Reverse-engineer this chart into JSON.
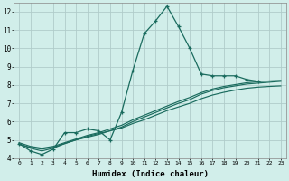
{
  "xlabel": "Humidex (Indice chaleur)",
  "bg_color": "#d1eeea",
  "grid_color": "#b0ccca",
  "line_color": "#1a6b5e",
  "x_main": [
    0,
    1,
    2,
    3,
    4,
    5,
    6,
    7,
    8,
    9,
    10,
    11,
    12,
    13,
    14,
    15,
    16,
    17,
    18,
    19,
    20,
    21
  ],
  "y_main": [
    4.8,
    4.4,
    4.2,
    4.5,
    5.4,
    5.4,
    5.6,
    5.5,
    5.0,
    6.5,
    8.8,
    10.8,
    11.5,
    12.3,
    11.2,
    10.0,
    8.6,
    8.5,
    8.5,
    8.5,
    8.3,
    8.2
  ],
  "y_smooth1": [
    4.8,
    4.55,
    4.4,
    4.55,
    4.8,
    5.0,
    5.2,
    5.35,
    5.5,
    5.7,
    6.0,
    6.25,
    6.5,
    6.75,
    7.0,
    7.2,
    7.5,
    7.7,
    7.85,
    7.95,
    8.05,
    8.1,
    8.15,
    8.2
  ],
  "y_smooth2": [
    4.75,
    4.6,
    4.5,
    4.6,
    4.8,
    5.0,
    5.15,
    5.3,
    5.5,
    5.65,
    5.9,
    6.1,
    6.35,
    6.6,
    6.8,
    7.0,
    7.25,
    7.45,
    7.6,
    7.72,
    7.82,
    7.88,
    7.92,
    7.95
  ],
  "y_smooth3": [
    4.85,
    4.65,
    4.55,
    4.65,
    4.85,
    5.05,
    5.25,
    5.4,
    5.6,
    5.8,
    6.1,
    6.35,
    6.6,
    6.85,
    7.1,
    7.32,
    7.58,
    7.78,
    7.92,
    8.02,
    8.12,
    8.18,
    8.22,
    8.25
  ],
  "x_smooth": [
    0,
    1,
    2,
    3,
    4,
    5,
    6,
    7,
    8,
    9,
    10,
    11,
    12,
    13,
    14,
    15,
    16,
    17,
    18,
    19,
    20,
    21,
    22,
    23
  ],
  "ylim_min": 4.0,
  "ylim_max": 12.5,
  "xlim_min": 0,
  "xlim_max": 23,
  "yticks": [
    4,
    5,
    6,
    7,
    8,
    9,
    10,
    11,
    12
  ],
  "xticks": [
    0,
    1,
    2,
    3,
    4,
    5,
    6,
    7,
    8,
    9,
    10,
    11,
    12,
    13,
    14,
    15,
    16,
    17,
    18,
    19,
    20,
    21,
    22,
    23
  ]
}
